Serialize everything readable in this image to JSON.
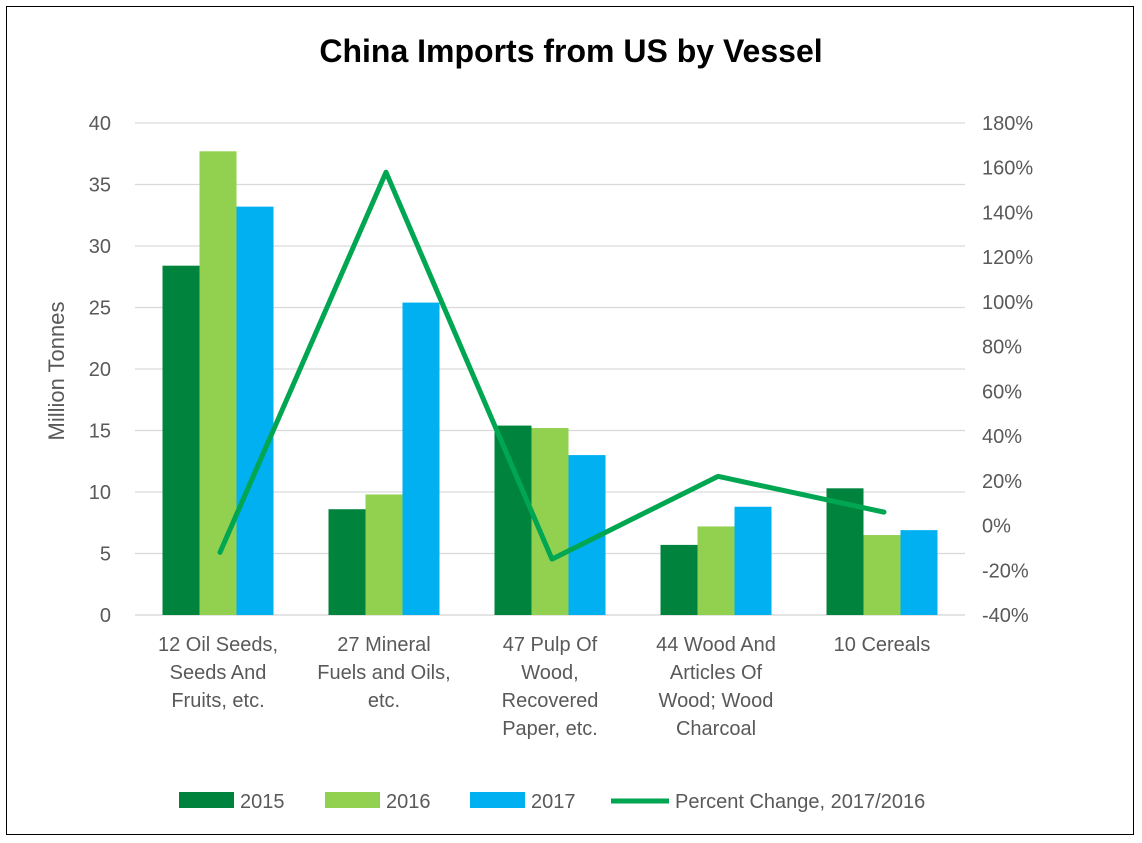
{
  "chart_data": {
    "type": "bar",
    "title": "China Imports from US by Vessel",
    "ylabel": "Million Tonnes",
    "ylabel_right": "",
    "ylim": [
      0,
      40
    ],
    "y_ticks": [
      "0",
      "5",
      "10",
      "15",
      "20",
      "25",
      "30",
      "35",
      "40"
    ],
    "y2lim": [
      -40,
      180
    ],
    "y2_ticks": [
      "-40%",
      "-20%",
      "0%",
      "20%",
      "40%",
      "60%",
      "80%",
      "100%",
      "120%",
      "140%",
      "160%",
      "180%"
    ],
    "grid": true,
    "legend_position": "bottom",
    "categories": [
      [
        "12 Oil Seeds,",
        "Seeds And",
        "Fruits, etc."
      ],
      [
        "27 Mineral",
        "Fuels and Oils,",
        "etc."
      ],
      [
        "47 Pulp Of",
        "Wood,",
        "Recovered",
        "Paper, etc."
      ],
      [
        "44 Wood And",
        "Articles Of",
        "Wood; Wood",
        "Charcoal"
      ],
      [
        "10 Cereals"
      ]
    ],
    "series": [
      {
        "name": "2015",
        "type": "bar",
        "axis": "left",
        "color": "#00843d",
        "values": [
          28.4,
          8.6,
          15.4,
          5.7,
          10.3
        ]
      },
      {
        "name": "2016",
        "type": "bar",
        "axis": "left",
        "color": "#92d050",
        "values": [
          37.7,
          9.8,
          15.2,
          7.2,
          6.5
        ]
      },
      {
        "name": "2017",
        "type": "bar",
        "axis": "left",
        "color": "#00b0f0",
        "values": [
          33.2,
          25.4,
          13.0,
          8.8,
          6.9
        ]
      },
      {
        "name": "Percent Change, 2017/2016",
        "type": "line",
        "axis": "right",
        "color": "#00a651",
        "values": [
          -12,
          158,
          -15,
          22,
          6
        ]
      }
    ]
  }
}
